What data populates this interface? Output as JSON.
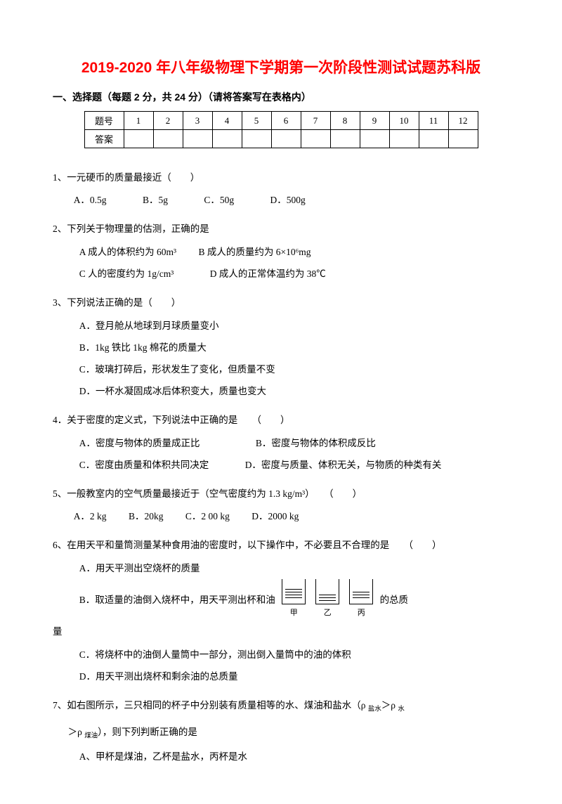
{
  "doc": {
    "title": "2019-2020 年八年级物理下学期第一次阶段性测试试题苏科版",
    "section1_header": "一、选择题（每题 2 分，共 24 分）（请将答案写在表格内）",
    "table": {
      "row_label_1": "题号",
      "row_label_2": "答案",
      "nums": [
        "1",
        "2",
        "3",
        "4",
        "5",
        "6",
        "7",
        "8",
        "9",
        "10",
        "11",
        "12"
      ]
    },
    "q1": {
      "stem": "1、一元硬币的质量最接近（　　）",
      "A": "A．0.5g",
      "B": "B．5g",
      "C": "C．50g",
      "D": "D．500g"
    },
    "q2": {
      "stem": "2、下列关于物理量的估测，正确的是",
      "A": "A  成人的体积约为 60m³",
      "B": "B 成人的质量约为 6×10⁶mg",
      "C": "C 人的密度约为 1g/cm³",
      "D": "D  成人的正常体温约为 38℃"
    },
    "q3": {
      "stem": "3、下列说法正确的是（　　）",
      "A": "A．登月舱从地球到月球质量变小",
      "B": "B．1kg 铁比 1kg 棉花的质量大",
      "C": "C．玻璃打碎后，形状发生了变化，但质量不变",
      "D": "D．一杯水凝固成冰后体积变大，质量也变大"
    },
    "q4": {
      "stem": "4．关于密度的定义式，下列说法中正确的是　　（　　）",
      "A": "A．密度与物体的质量成正比",
      "B": "B．密度与物体的体积成反比",
      "C": "C．密度由质量和体积共同决定",
      "D": "D．密度与质量、体积无关，与物质的种类有关"
    },
    "q5": {
      "stem": "5、一般教室内的空气质量最接近于（空气密度约为 1.3 kg/m³）　　（　　）",
      "A": "A．2 kg",
      "B": "B．20kg",
      "C": "C．2 00 kg",
      "D": "D．2000 kg"
    },
    "q6": {
      "stem": "6、在用天平和量筒测量某种食用油的密度时，以下操作中，不必要且不合理的是　　（　　）",
      "A": "A．用天平测出空烧杯的质量",
      "B_pre": "B．取适量的油倒入烧杯中，用天平测出杯和油",
      "B_post": "的总质",
      "B_tail": "量",
      "C": "C．将烧杯中的油倒人量筒中一部分，测出倒入量筒中的油的体积",
      "D": "D．用天平测出烧杯和剩余油的总质量",
      "beaker_labels": [
        "甲",
        "乙",
        "丙"
      ],
      "fill_heights": [
        24,
        16,
        20
      ]
    },
    "q7": {
      "stem_a": "7、如右图所示，三只相同的杯子中分别装有质量相等的水、煤油和盐水（ρ ",
      "sub1": "盐水",
      "stem_b": "＞ρ ",
      "sub2": "水",
      "stem_c": "＞ρ ",
      "sub3": "煤油",
      "stem_d": "），则下列判断正确的是",
      "A": "A、甲杯是煤油，乙杯是盐水，丙杯是水"
    }
  }
}
